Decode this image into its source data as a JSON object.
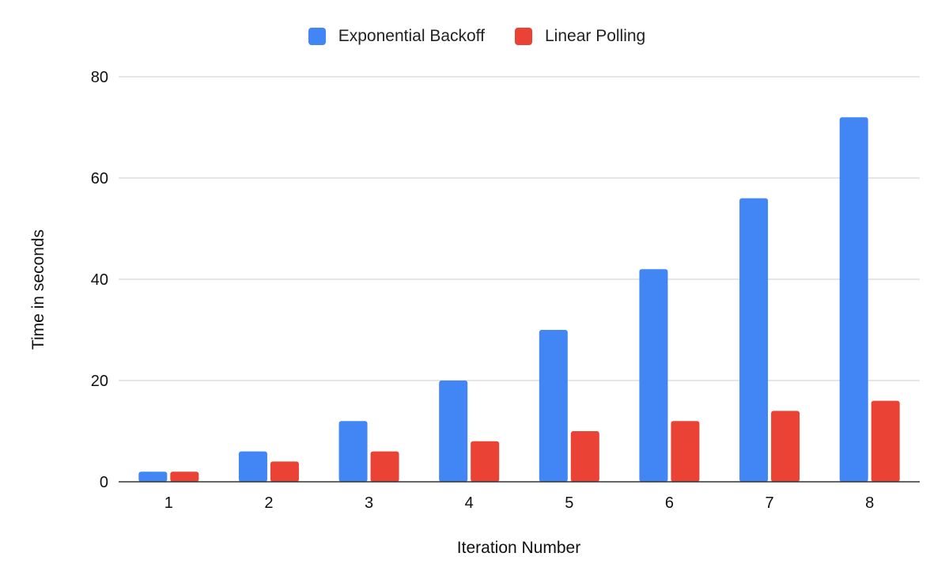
{
  "chart_data": {
    "type": "bar",
    "categories": [
      "1",
      "2",
      "3",
      "4",
      "5",
      "6",
      "7",
      "8"
    ],
    "series": [
      {
        "name": "Exponential Backoff",
        "color": "#4285f4",
        "values": [
          2,
          6,
          12,
          20,
          30,
          42,
          56,
          72
        ]
      },
      {
        "name": "Linear Polling",
        "color": "#ea4335",
        "values": [
          2,
          4,
          6,
          8,
          10,
          12,
          14,
          16
        ]
      }
    ],
    "xlabel": "Iteration Number",
    "ylabel": "Time in seconds",
    "ylim": [
      0,
      80
    ],
    "yticks": [
      "0",
      "20",
      "40",
      "60",
      "80"
    ],
    "grid": true,
    "legend_position": "top-center"
  }
}
